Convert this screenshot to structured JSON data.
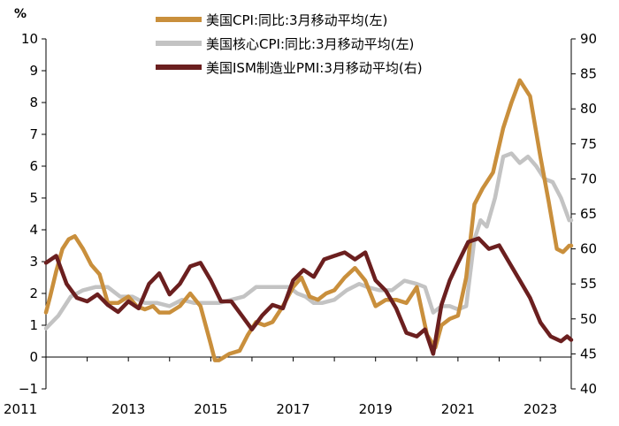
{
  "chart_data": {
    "type": "line",
    "y_unit_label": "%",
    "x_tick_labels": [
      "2011",
      "2013",
      "2015",
      "2017",
      "2019",
      "2021",
      "2023"
    ],
    "left_axis": {
      "range": [
        -1,
        10
      ],
      "ticks": [
        "−1",
        "0",
        "1",
        "2",
        "3",
        "4",
        "5",
        "6",
        "7",
        "8",
        "9",
        "10"
      ]
    },
    "right_axis": {
      "range": [
        40,
        90
      ],
      "ticks": [
        "40",
        "45",
        "50",
        "55",
        "60",
        "65",
        "70",
        "75",
        "80",
        "85",
        "90"
      ]
    },
    "legend": [
      {
        "label": "美国CPI:同比:3月移动平均(左)",
        "color": "#c98f3c"
      },
      {
        "label": "美国核心CPI:同比:3月移动平均(左)",
        "color": "#c3c3c3"
      },
      {
        "label": "美国ISM制造业PMI:3月移动平均(右)",
        "color": "#6b1f1f"
      }
    ],
    "series": [
      {
        "name": "美国CPI:同比:3月移动平均(左)",
        "axis": "left",
        "color": "#c98f3c",
        "x": [
          2011.0,
          2011.1,
          2011.25,
          2011.4,
          2011.55,
          2011.7,
          2011.9,
          2012.1,
          2012.3,
          2012.5,
          2012.75,
          2013.0,
          2013.2,
          2013.4,
          2013.6,
          2013.75,
          2014.0,
          2014.25,
          2014.5,
          2014.75,
          2015.0,
          2015.1,
          2015.2,
          2015.45,
          2015.7,
          2015.9,
          2016.1,
          2016.3,
          2016.5,
          2016.75,
          2017.0,
          2017.2,
          2017.4,
          2017.6,
          2017.8,
          2018.0,
          2018.25,
          2018.5,
          2018.75,
          2019.0,
          2019.25,
          2019.5,
          2019.75,
          2020.0,
          2020.25,
          2020.45,
          2020.6,
          2020.8,
          2021.0,
          2021.2,
          2021.4,
          2021.6,
          2021.85,
          2022.1,
          2022.3,
          2022.5,
          2022.75,
          2023.0,
          2023.2,
          2023.4,
          2023.55,
          2023.7,
          2023.75
        ],
        "values": [
          1.4,
          1.9,
          2.7,
          3.4,
          3.7,
          3.8,
          3.4,
          2.9,
          2.6,
          1.7,
          1.7,
          1.9,
          1.6,
          1.5,
          1.6,
          1.4,
          1.4,
          1.6,
          2.0,
          1.6,
          0.4,
          -0.1,
          -0.1,
          0.1,
          0.2,
          0.7,
          1.1,
          1.0,
          1.1,
          1.6,
          2.2,
          2.5,
          1.9,
          1.8,
          2.0,
          2.1,
          2.5,
          2.8,
          2.4,
          1.6,
          1.8,
          1.8,
          1.7,
          2.2,
          0.7,
          0.3,
          1.0,
          1.2,
          1.3,
          2.5,
          4.8,
          5.3,
          5.8,
          7.2,
          8.0,
          8.7,
          8.2,
          6.3,
          4.9,
          3.4,
          3.3,
          3.5,
          3.5
        ]
      },
      {
        "name": "美国核心CPI:同比:3月移动平均(左)",
        "axis": "left",
        "color": "#c3c3c3",
        "x": [
          2011.0,
          2011.3,
          2011.6,
          2011.9,
          2012.2,
          2012.5,
          2012.8,
          2013.1,
          2013.4,
          2013.7,
          2014.0,
          2014.3,
          2014.6,
          2014.9,
          2015.2,
          2015.5,
          2015.8,
          2016.1,
          2016.4,
          2016.7,
          2016.9,
          2017.1,
          2017.3,
          2017.5,
          2017.7,
          2018.0,
          2018.3,
          2018.6,
          2018.8,
          2019.1,
          2019.4,
          2019.7,
          2020.0,
          2020.2,
          2020.4,
          2020.6,
          2020.8,
          2021.0,
          2021.2,
          2021.4,
          2021.55,
          2021.7,
          2021.9,
          2022.1,
          2022.3,
          2022.5,
          2022.7,
          2022.9,
          2023.1,
          2023.3,
          2023.5,
          2023.7,
          2023.75
        ],
        "values": [
          0.9,
          1.3,
          1.9,
          2.1,
          2.2,
          2.2,
          1.9,
          1.9,
          1.7,
          1.7,
          1.6,
          1.8,
          1.7,
          1.7,
          1.7,
          1.8,
          1.9,
          2.2,
          2.2,
          2.2,
          2.2,
          2.0,
          1.9,
          1.7,
          1.7,
          1.8,
          2.1,
          2.3,
          2.2,
          2.1,
          2.1,
          2.4,
          2.3,
          2.2,
          1.4,
          1.6,
          1.6,
          1.5,
          1.6,
          3.7,
          4.3,
          4.1,
          5.0,
          6.3,
          6.4,
          6.1,
          6.3,
          6.0,
          5.6,
          5.5,
          5.0,
          4.3,
          4.3
        ]
      },
      {
        "name": "美国ISM制造业PMI:3月移动平均(右)",
        "axis": "right",
        "color": "#6b1f1f",
        "x": [
          2011.0,
          2011.25,
          2011.5,
          2011.75,
          2012.0,
          2012.25,
          2012.5,
          2012.75,
          2013.0,
          2013.25,
          2013.5,
          2013.75,
          2014.0,
          2014.25,
          2014.5,
          2014.75,
          2015.0,
          2015.25,
          2015.5,
          2015.75,
          2016.0,
          2016.25,
          2016.5,
          2016.75,
          2017.0,
          2017.25,
          2017.5,
          2017.75,
          2018.0,
          2018.25,
          2018.5,
          2018.75,
          2019.0,
          2019.25,
          2019.5,
          2019.75,
          2020.0,
          2020.2,
          2020.4,
          2020.6,
          2020.8,
          2021.0,
          2021.25,
          2021.5,
          2021.75,
          2022.0,
          2022.25,
          2022.5,
          2022.75,
          2023.0,
          2023.25,
          2023.5,
          2023.65,
          2023.75
        ],
        "values": [
          58.0,
          59.0,
          55.0,
          53.0,
          52.5,
          53.5,
          52.0,
          51.0,
          52.5,
          51.5,
          55.0,
          56.5,
          53.5,
          55.0,
          57.5,
          58.0,
          55.5,
          52.5,
          52.5,
          50.5,
          48.5,
          50.5,
          52.0,
          51.5,
          55.5,
          57.0,
          56.0,
          58.5,
          59.0,
          59.5,
          58.5,
          59.5,
          55.5,
          54.0,
          51.5,
          48.0,
          47.5,
          48.5,
          45.0,
          52.0,
          55.5,
          58.0,
          61.0,
          61.5,
          60.0,
          60.5,
          58.0,
          55.5,
          53.0,
          49.5,
          47.5,
          46.8,
          47.5,
          47.0
        ]
      }
    ]
  }
}
